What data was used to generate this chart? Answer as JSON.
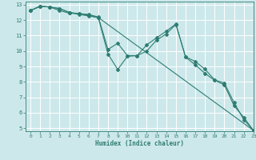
{
  "xlabel": "Humidex (Indice chaleur)",
  "xlim": [
    -0.5,
    23
  ],
  "ylim": [
    4.8,
    13.2
  ],
  "yticks": [
    5,
    6,
    7,
    8,
    9,
    10,
    11,
    12,
    13
  ],
  "xticks": [
    0,
    1,
    2,
    3,
    4,
    5,
    6,
    7,
    8,
    9,
    10,
    11,
    12,
    13,
    14,
    15,
    16,
    17,
    18,
    19,
    20,
    21,
    22,
    23
  ],
  "bg_color": "#cde8eb",
  "grid_color": "#ffffff",
  "line_color": "#2e7d72",
  "line1_x": [
    0,
    1,
    2,
    3,
    4,
    5,
    6,
    7,
    8,
    9,
    10,
    11,
    12,
    13,
    14,
    15,
    16,
    17,
    18,
    19,
    20,
    21,
    22,
    23
  ],
  "line1_y": [
    12.62,
    12.9,
    12.85,
    12.75,
    12.5,
    12.42,
    12.32,
    12.15,
    9.8,
    8.8,
    9.65,
    9.7,
    10.4,
    10.85,
    11.28,
    11.75,
    9.6,
    9.1,
    8.55,
    8.1,
    7.8,
    6.45,
    5.7,
    4.85
  ],
  "line2_x": [
    0,
    1,
    2,
    3,
    4,
    5,
    6,
    7,
    8,
    9,
    10,
    11,
    12,
    13,
    14,
    15,
    16,
    17,
    18,
    19,
    20,
    21,
    22,
    23
  ],
  "line2_y": [
    12.62,
    12.9,
    12.85,
    12.62,
    12.45,
    12.42,
    12.37,
    12.2,
    10.1,
    10.5,
    9.7,
    9.7,
    10.0,
    10.7,
    11.1,
    11.72,
    9.62,
    9.32,
    8.82,
    8.12,
    7.92,
    6.65,
    5.55,
    4.85
  ],
  "line3_x": [
    0,
    1,
    2,
    3,
    4,
    5,
    6,
    7,
    23
  ],
  "line3_y": [
    12.62,
    12.9,
    12.85,
    12.75,
    12.5,
    12.37,
    12.27,
    12.17,
    4.85
  ]
}
